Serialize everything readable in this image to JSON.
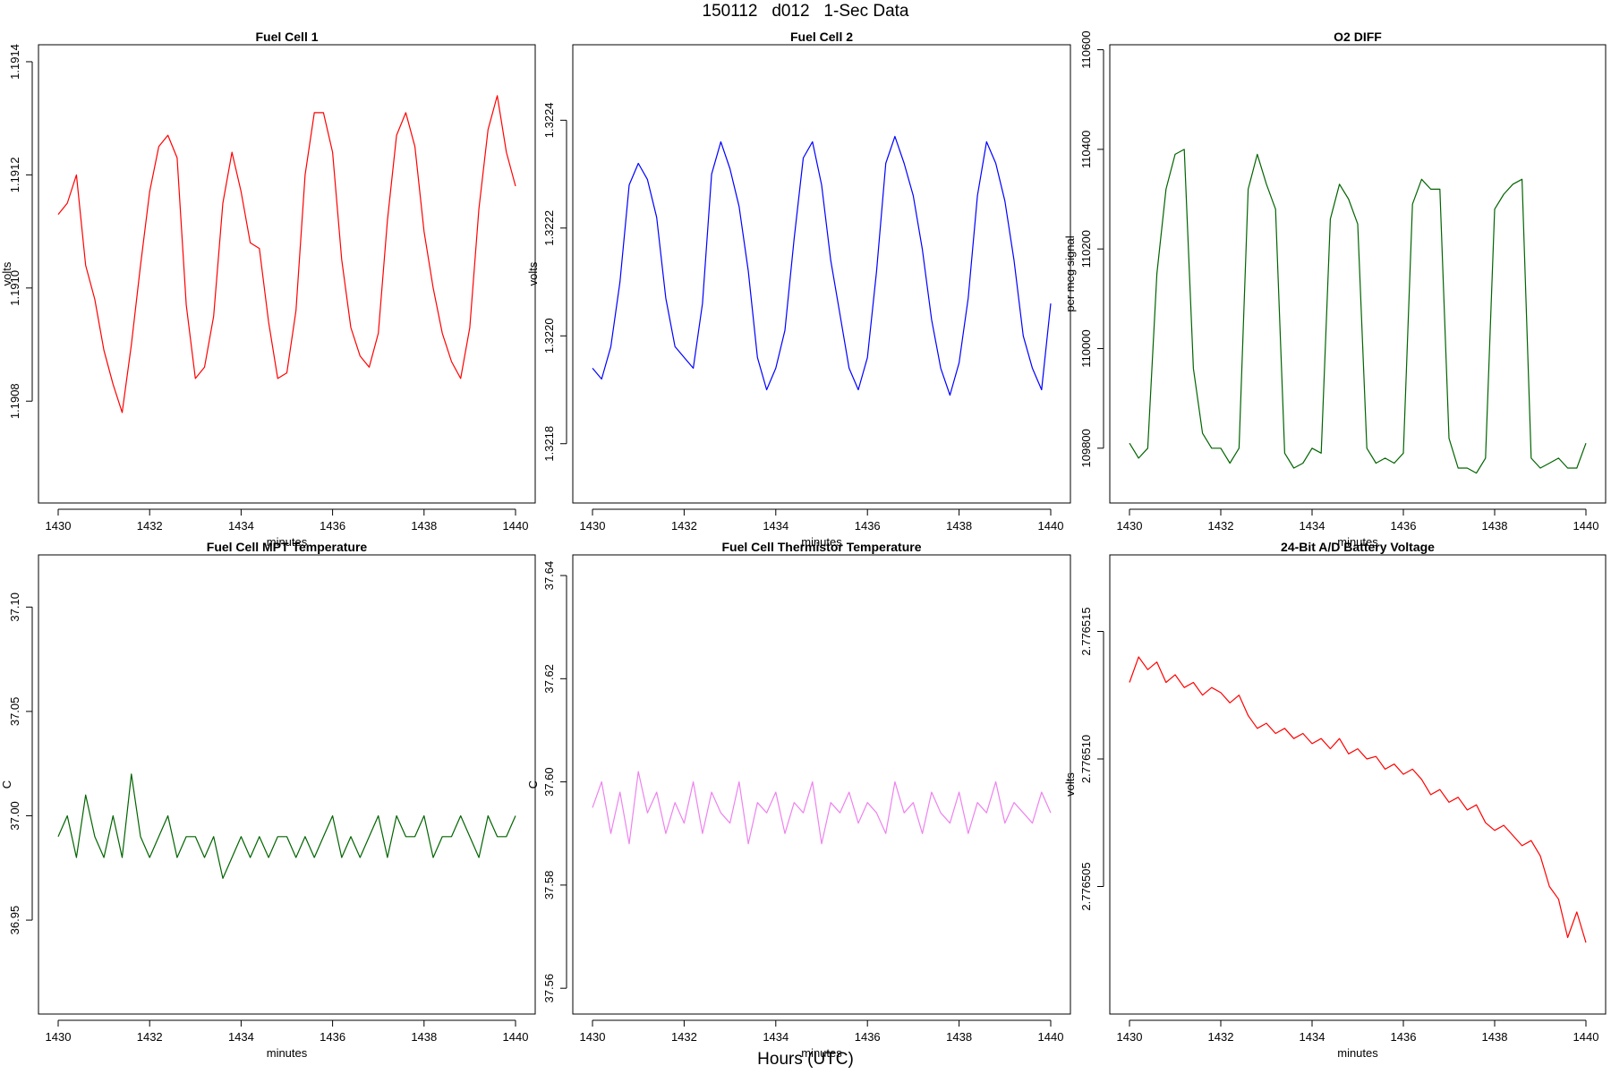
{
  "page": {
    "title": "150112   d012   1-Sec Data",
    "x_master_label": "Hours (UTC)"
  },
  "chart_data": [
    {
      "type": "line",
      "title": "Fuel Cell 1",
      "xlabel": "minutes",
      "ylabel": "volts",
      "color": "#ff0000",
      "xlim": [
        1430,
        1440
      ],
      "ylim": [
        1.19062,
        1.19143
      ],
      "xticks": [
        "1430",
        "1432",
        "1434",
        "1436",
        "1438",
        "1440"
      ],
      "yticks": [
        "1.1908",
        "1.1910",
        "1.1912",
        "1.1914"
      ],
      "series": [
        {
          "x": [
            1430.0,
            1430.2,
            1430.4,
            1430.6,
            1430.8,
            1431.0,
            1431.2,
            1431.4,
            1431.6,
            1431.8,
            1432.0,
            1432.2,
            1432.4,
            1432.6,
            1432.8,
            1433.0,
            1433.2,
            1433.4,
            1433.6,
            1433.8,
            1434.0,
            1434.2,
            1434.4,
            1434.6,
            1434.8,
            1435.0,
            1435.2,
            1435.4,
            1435.6,
            1435.8,
            1436.0,
            1436.2,
            1436.4,
            1436.6,
            1436.8,
            1437.0,
            1437.2,
            1437.4,
            1437.6,
            1437.8,
            1438.0,
            1438.2,
            1438.4,
            1438.6,
            1438.8,
            1439.0,
            1439.2,
            1439.4,
            1439.6,
            1439.8,
            1440.0
          ],
          "y": [
            1.19113,
            1.19115,
            1.1912,
            1.19104,
            1.19098,
            1.19089,
            1.19083,
            1.19078,
            1.1909,
            1.19104,
            1.19117,
            1.19125,
            1.19127,
            1.19123,
            1.19097,
            1.19084,
            1.19086,
            1.19095,
            1.19115,
            1.19124,
            1.19117,
            1.19108,
            1.19107,
            1.19094,
            1.19084,
            1.19085,
            1.19096,
            1.1912,
            1.19131,
            1.19131,
            1.19124,
            1.19105,
            1.19093,
            1.19088,
            1.19086,
            1.19092,
            1.19112,
            1.19127,
            1.19131,
            1.19125,
            1.1911,
            1.191,
            1.19092,
            1.19087,
            1.19084,
            1.19093,
            1.19114,
            1.19128,
            1.19134,
            1.19124,
            1.19118
          ]
        }
      ]
    },
    {
      "type": "line",
      "title": "Fuel Cell 2",
      "xlabel": "minutes",
      "ylabel": "volts",
      "color": "#0000ff",
      "xlim": [
        1430,
        1440
      ],
      "ylim": [
        1.32169,
        1.32254
      ],
      "xticks": [
        "1430",
        "1432",
        "1434",
        "1436",
        "1438",
        "1440"
      ],
      "yticks": [
        "1.3218",
        "1.3220",
        "1.3222",
        "1.3224"
      ],
      "series": [
        {
          "x": [
            1430.0,
            1430.2,
            1430.4,
            1430.6,
            1430.8,
            1431.0,
            1431.2,
            1431.4,
            1431.6,
            1431.8,
            1432.0,
            1432.2,
            1432.4,
            1432.6,
            1432.8,
            1433.0,
            1433.2,
            1433.4,
            1433.6,
            1433.8,
            1434.0,
            1434.2,
            1434.4,
            1434.6,
            1434.8,
            1435.0,
            1435.2,
            1435.4,
            1435.6,
            1435.8,
            1436.0,
            1436.2,
            1436.4,
            1436.6,
            1436.8,
            1437.0,
            1437.2,
            1437.4,
            1437.6,
            1437.8,
            1438.0,
            1438.2,
            1438.4,
            1438.6,
            1438.8,
            1439.0,
            1439.2,
            1439.4,
            1439.6,
            1439.8,
            1440.0
          ],
          "y": [
            1.32194,
            1.32192,
            1.32198,
            1.3221,
            1.32228,
            1.32232,
            1.32229,
            1.32222,
            1.32207,
            1.32198,
            1.32196,
            1.32194,
            1.32206,
            1.3223,
            1.32236,
            1.32231,
            1.32224,
            1.32212,
            1.32196,
            1.3219,
            1.32194,
            1.32201,
            1.32218,
            1.32233,
            1.32236,
            1.32228,
            1.32214,
            1.32204,
            1.32194,
            1.3219,
            1.32196,
            1.32212,
            1.32232,
            1.32237,
            1.32232,
            1.32226,
            1.32216,
            1.32203,
            1.32194,
            1.32189,
            1.32195,
            1.32207,
            1.32226,
            1.32236,
            1.32232,
            1.32225,
            1.32214,
            1.322,
            1.32194,
            1.3219,
            1.32206
          ]
        }
      ]
    },
    {
      "type": "line",
      "title": "O2 DIFF",
      "xlabel": "minutes",
      "ylabel": "per meg signal",
      "color": "#006400",
      "xlim": [
        1430,
        1440
      ],
      "ylim": [
        109690,
        110610
      ],
      "xticks": [
        "1430",
        "1432",
        "1434",
        "1436",
        "1438",
        "1440"
      ],
      "yticks": [
        "109800",
        "110000",
        "110200",
        "110400",
        "110600"
      ],
      "series": [
        {
          "x": [
            1430.0,
            1430.2,
            1430.4,
            1430.6,
            1430.8,
            1431.0,
            1431.2,
            1431.4,
            1431.6,
            1431.8,
            1432.0,
            1432.2,
            1432.4,
            1432.6,
            1432.8,
            1433.0,
            1433.2,
            1433.4,
            1433.6,
            1433.8,
            1434.0,
            1434.2,
            1434.4,
            1434.6,
            1434.8,
            1435.0,
            1435.2,
            1435.4,
            1435.6,
            1435.8,
            1436.0,
            1436.2,
            1436.4,
            1436.6,
            1436.8,
            1437.0,
            1437.2,
            1437.4,
            1437.6,
            1437.8,
            1438.0,
            1438.2,
            1438.4,
            1438.6,
            1438.8,
            1439.0,
            1439.2,
            1439.4,
            1439.6,
            1439.8,
            1440.0
          ],
          "y": [
            109810,
            109780,
            109800,
            110150,
            110320,
            110390,
            110400,
            109960,
            109830,
            109800,
            109800,
            109770,
            109800,
            110320,
            110390,
            110330,
            110280,
            109790,
            109760,
            109770,
            109800,
            109790,
            110260,
            110330,
            110300,
            110250,
            109800,
            109770,
            109780,
            109770,
            109790,
            110290,
            110340,
            110320,
            110320,
            109820,
            109760,
            109760,
            109750,
            109780,
            110280,
            110310,
            110330,
            110340,
            109780,
            109760,
            109770,
            109780,
            109760,
            109760,
            109810
          ]
        }
      ]
    },
    {
      "type": "line",
      "title": "Fuel Cell MPT Temperature",
      "xlabel": "minutes",
      "ylabel": "C",
      "color": "#006400",
      "xlim": [
        1430,
        1440
      ],
      "ylim": [
        36.905,
        37.125
      ],
      "xticks": [
        "1430",
        "1432",
        "1434",
        "1436",
        "1438",
        "1440"
      ],
      "yticks": [
        "36.95",
        "37.00",
        "37.05",
        "37.10"
      ],
      "series": [
        {
          "x": [
            1430.0,
            1430.2,
            1430.4,
            1430.6,
            1430.8,
            1431.0,
            1431.2,
            1431.4,
            1431.6,
            1431.8,
            1432.0,
            1432.2,
            1432.4,
            1432.6,
            1432.8,
            1433.0,
            1433.2,
            1433.4,
            1433.6,
            1433.8,
            1434.0,
            1434.2,
            1434.4,
            1434.6,
            1434.8,
            1435.0,
            1435.2,
            1435.4,
            1435.6,
            1435.8,
            1436.0,
            1436.2,
            1436.4,
            1436.6,
            1436.8,
            1437.0,
            1437.2,
            1437.4,
            1437.6,
            1437.8,
            1438.0,
            1438.2,
            1438.4,
            1438.6,
            1438.8,
            1439.0,
            1439.2,
            1439.4,
            1439.6,
            1439.8,
            1440.0
          ],
          "y": [
            36.99,
            37.0,
            36.98,
            37.01,
            36.99,
            36.98,
            37.0,
            36.98,
            37.02,
            36.99,
            36.98,
            36.99,
            37.0,
            36.98,
            36.99,
            36.99,
            36.98,
            36.99,
            36.97,
            36.98,
            36.99,
            36.98,
            36.99,
            36.98,
            36.99,
            36.99,
            36.98,
            36.99,
            36.98,
            36.99,
            37.0,
            36.98,
            36.99,
            36.98,
            36.99,
            37.0,
            36.98,
            37.0,
            36.99,
            36.99,
            37.0,
            36.98,
            36.99,
            36.99,
            37.0,
            36.99,
            36.98,
            37.0,
            36.99,
            36.99,
            37.0
          ]
        }
      ]
    },
    {
      "type": "line",
      "title": "Fuel Cell Thermistor Temperature",
      "xlabel": "minutes",
      "ylabel": "C",
      "color": "#ee82ee",
      "xlim": [
        1430,
        1440
      ],
      "ylim": [
        37.555,
        37.644
      ],
      "xticks": [
        "1430",
        "1432",
        "1434",
        "1436",
        "1438",
        "1440"
      ],
      "yticks": [
        "37.56",
        "37.58",
        "37.60",
        "37.62",
        "37.64"
      ],
      "series": [
        {
          "x": [
            1430.0,
            1430.2,
            1430.4,
            1430.6,
            1430.8,
            1431.0,
            1431.2,
            1431.4,
            1431.6,
            1431.8,
            1432.0,
            1432.2,
            1432.4,
            1432.6,
            1432.8,
            1433.0,
            1433.2,
            1433.4,
            1433.6,
            1433.8,
            1434.0,
            1434.2,
            1434.4,
            1434.6,
            1434.8,
            1435.0,
            1435.2,
            1435.4,
            1435.6,
            1435.8,
            1436.0,
            1436.2,
            1436.4,
            1436.6,
            1436.8,
            1437.0,
            1437.2,
            1437.4,
            1437.6,
            1437.8,
            1438.0,
            1438.2,
            1438.4,
            1438.6,
            1438.8,
            1439.0,
            1439.2,
            1439.4,
            1439.6,
            1439.8,
            1440.0
          ],
          "y": [
            37.595,
            37.6,
            37.59,
            37.598,
            37.588,
            37.602,
            37.594,
            37.598,
            37.59,
            37.596,
            37.592,
            37.6,
            37.59,
            37.598,
            37.594,
            37.592,
            37.6,
            37.588,
            37.596,
            37.594,
            37.598,
            37.59,
            37.596,
            37.594,
            37.6,
            37.588,
            37.596,
            37.594,
            37.598,
            37.592,
            37.596,
            37.594,
            37.59,
            37.6,
            37.594,
            37.596,
            37.59,
            37.598,
            37.594,
            37.592,
            37.598,
            37.59,
            37.596,
            37.594,
            37.6,
            37.592,
            37.596,
            37.594,
            37.592,
            37.598,
            37.594
          ]
        }
      ]
    },
    {
      "type": "line",
      "title": "24-Bit A/D Battery Voltage",
      "xlabel": "minutes",
      "ylabel": "volts",
      "color": "#ff0000",
      "xlim": [
        1430,
        1440
      ],
      "ylim": [
        2.7765,
        2.776518
      ],
      "xticks": [
        "1430",
        "1432",
        "1434",
        "1436",
        "1438",
        "1440"
      ],
      "yticks": [
        "2.776505",
        "2.776510",
        "2.776515"
      ],
      "series": [
        {
          "x": [
            1430.0,
            1430.2,
            1430.4,
            1430.6,
            1430.8,
            1431.0,
            1431.2,
            1431.4,
            1431.6,
            1431.8,
            1432.0,
            1432.2,
            1432.4,
            1432.6,
            1432.8,
            1433.0,
            1433.2,
            1433.4,
            1433.6,
            1433.8,
            1434.0,
            1434.2,
            1434.4,
            1434.6,
            1434.8,
            1435.0,
            1435.2,
            1435.4,
            1435.6,
            1435.8,
            1436.0,
            1436.2,
            1436.4,
            1436.6,
            1436.8,
            1437.0,
            1437.2,
            1437.4,
            1437.6,
            1437.8,
            1438.0,
            1438.2,
            1438.4,
            1438.6,
            1438.8,
            1439.0,
            1439.2,
            1439.4,
            1439.6,
            1439.8,
            1440.0
          ],
          "y": [
            2.776513,
            2.776514,
            2.7765135,
            2.7765138,
            2.776513,
            2.7765133,
            2.7765128,
            2.776513,
            2.7765125,
            2.7765128,
            2.7765126,
            2.7765122,
            2.7765125,
            2.7765117,
            2.7765112,
            2.7765114,
            2.776511,
            2.7765112,
            2.7765108,
            2.776511,
            2.7765106,
            2.7765108,
            2.7765104,
            2.7765108,
            2.7765102,
            2.7765104,
            2.77651,
            2.7765101,
            2.7765096,
            2.7765098,
            2.7765094,
            2.7765096,
            2.7765092,
            2.7765086,
            2.7765088,
            2.7765083,
            2.7765085,
            2.776508,
            2.7765082,
            2.7765075,
            2.7765072,
            2.7765074,
            2.776507,
            2.7765066,
            2.7765068,
            2.7765062,
            2.776505,
            2.7765045,
            2.776503,
            2.776504,
            2.7765028
          ]
        }
      ]
    }
  ]
}
